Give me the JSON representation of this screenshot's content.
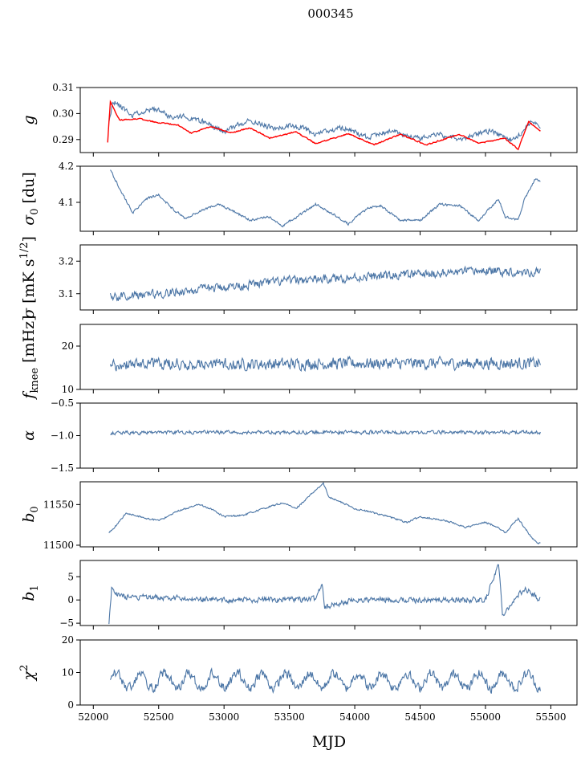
{
  "title": "000345",
  "chart_data": {
    "type": "line",
    "title": "000345",
    "xlabel": "MJD",
    "xlim": [
      51900,
      55700
    ],
    "xticks": [
      52000,
      52500,
      53000,
      53500,
      54000,
      54500,
      55000,
      55500
    ],
    "xtick_labels": [
      "52000",
      "52500",
      "53000",
      "53500",
      "54000",
      "54500",
      "55000",
      "55500"
    ],
    "data_x_range": [
      52120,
      55420
    ],
    "panels": [
      {
        "name": "g",
        "ylabel": "g",
        "ylim": [
          0.285,
          0.31
        ],
        "yticks": [
          0.29,
          0.3,
          0.31
        ],
        "ytick_labels": [
          "0.29",
          "0.30",
          "0.31"
        ],
        "series": [
          {
            "name": "g",
            "color": "#4c76a6",
            "points": [
              [
                52120,
                0.296
              ],
              [
                52150,
                0.305
              ],
              [
                52200,
                0.303
              ],
              [
                52300,
                0.2995
              ],
              [
                52400,
                0.301
              ],
              [
                52500,
                0.3015
              ],
              [
                52600,
                0.2985
              ],
              [
                52700,
                0.299
              ],
              [
                52800,
                0.2975
              ],
              [
                52900,
                0.2955
              ],
              [
                53000,
                0.293
              ],
              [
                53100,
                0.2955
              ],
              [
                53200,
                0.2975
              ],
              [
                53300,
                0.2955
              ],
              [
                53400,
                0.294
              ],
              [
                53500,
                0.2955
              ],
              [
                53600,
                0.2945
              ],
              [
                53700,
                0.292
              ],
              [
                53800,
                0.2935
              ],
              [
                53900,
                0.2945
              ],
              [
                54000,
                0.293
              ],
              [
                54100,
                0.2905
              ],
              [
                54200,
                0.2925
              ],
              [
                54300,
                0.293
              ],
              [
                54400,
                0.2915
              ],
              [
                54500,
                0.2905
              ],
              [
                54600,
                0.292
              ],
              [
                54700,
                0.2915
              ],
              [
                54800,
                0.29
              ],
              [
                54900,
                0.2915
              ],
              [
                55000,
                0.2935
              ],
              [
                55100,
                0.292
              ],
              [
                55200,
                0.29
              ],
              [
                55300,
                0.2935
              ],
              [
                55350,
                0.2975
              ],
              [
                55420,
                0.295
              ]
            ],
            "noise": 0.0009,
            "seed": 11
          },
          {
            "name": "model",
            "color": "#ff0000",
            "points": [
              [
                52110,
                0.289
              ],
              [
                52130,
                0.3045
              ],
              [
                52200,
                0.2975
              ],
              [
                52350,
                0.298
              ],
              [
                52500,
                0.2965
              ],
              [
                52650,
                0.2955
              ],
              [
                52750,
                0.2925
              ],
              [
                52900,
                0.295
              ],
              [
                53050,
                0.2925
              ],
              [
                53200,
                0.2945
              ],
              [
                53350,
                0.2905
              ],
              [
                53550,
                0.293
              ],
              [
                53700,
                0.2885
              ],
              [
                53950,
                0.2922
              ],
              [
                54150,
                0.288
              ],
              [
                54350,
                0.292
              ],
              [
                54550,
                0.288
              ],
              [
                54800,
                0.292
              ],
              [
                54950,
                0.2885
              ],
              [
                55150,
                0.2905
              ],
              [
                55250,
                0.2862
              ],
              [
                55330,
                0.297
              ],
              [
                55420,
                0.293
              ]
            ],
            "noise": 0.0002,
            "seed": 5
          }
        ]
      },
      {
        "name": "sigma0",
        "ylabel": "σ",
        "ylabel_sub": "0",
        "ylabel_unit": "[du]",
        "ylim": [
          4.02,
          4.2
        ],
        "yticks": [
          4.1,
          4.2
        ],
        "ytick_labels": [
          "4.1",
          "4.2"
        ],
        "series": [
          {
            "name": "sigma0",
            "color": "#4c76a6",
            "points": [
              [
                52130,
                4.19
              ],
              [
                52200,
                4.14
              ],
              [
                52300,
                4.07
              ],
              [
                52400,
                4.11
              ],
              [
                52500,
                4.12
              ],
              [
                52600,
                4.085
              ],
              [
                52700,
                4.055
              ],
              [
                52850,
                4.08
              ],
              [
                52950,
                4.095
              ],
              [
                53100,
                4.07
              ],
              [
                53200,
                4.05
              ],
              [
                53350,
                4.06
              ],
              [
                53450,
                4.035
              ],
              [
                53600,
                4.07
              ],
              [
                53700,
                4.095
              ],
              [
                53800,
                4.075
              ],
              [
                53950,
                4.04
              ],
              [
                54100,
                4.085
              ],
              [
                54200,
                4.09
              ],
              [
                54350,
                4.05
              ],
              [
                54500,
                4.05
              ],
              [
                54650,
                4.095
              ],
              [
                54800,
                4.09
              ],
              [
                54950,
                4.05
              ],
              [
                55050,
                4.09
              ],
              [
                55100,
                4.11
              ],
              [
                55150,
                4.06
              ],
              [
                55250,
                4.05
              ],
              [
                55300,
                4.11
              ],
              [
                55380,
                4.165
              ],
              [
                55420,
                4.16
              ]
            ],
            "noise": 0.003,
            "seed": 21
          }
        ]
      },
      {
        "name": "sigma",
        "ylabel": "σ",
        "ylabel_unit": "[mK s",
        "ylabel_sup": "1/2",
        "ylabel_close": "]",
        "ylim": [
          3.05,
          3.25
        ],
        "yticks": [
          3.1,
          3.2
        ],
        "ytick_labels": [
          "3.1",
          "3.2"
        ],
        "series": [
          {
            "name": "sigma",
            "color": "#4c76a6",
            "points": [
              [
                52130,
                3.09
              ],
              [
                52500,
                3.1
              ],
              [
                53000,
                3.12
              ],
              [
                53500,
                3.14
              ],
              [
                54000,
                3.15
              ],
              [
                54500,
                3.16
              ],
              [
                55000,
                3.17
              ],
              [
                55420,
                3.165
              ]
            ],
            "noise": 0.012,
            "seed": 31
          }
        ]
      },
      {
        "name": "fknee",
        "ylabel": "f",
        "ylabel_sub": "knee",
        "ylabel_unit": "[mHz]",
        "ylim": [
          10,
          25
        ],
        "yticks": [
          10,
          20
        ],
        "ytick_labels": [
          "10",
          "20"
        ],
        "series": [
          {
            "name": "fknee",
            "color": "#4c76a6",
            "points": [
              [
                52130,
                15.8
              ],
              [
                53000,
                15.8
              ],
              [
                54000,
                16.0
              ],
              [
                55000,
                16.0
              ],
              [
                55420,
                16.0
              ]
            ],
            "noise": 1.2,
            "seed": 41
          }
        ]
      },
      {
        "name": "alpha",
        "ylabel": "α",
        "ylim": [
          -1.5,
          -0.5
        ],
        "yticks": [
          -1.5,
          -1.0,
          -0.5
        ],
        "ytick_labels": [
          "−1.5",
          "−1.0",
          "−0.5"
        ],
        "series": [
          {
            "name": "alpha",
            "color": "#4c76a6",
            "points": [
              [
                52130,
                -0.96
              ],
              [
                53000,
                -0.95
              ],
              [
                54000,
                -0.95
              ],
              [
                55000,
                -0.95
              ],
              [
                55420,
                -0.95
              ]
            ],
            "noise": 0.025,
            "seed": 51
          }
        ]
      },
      {
        "name": "b0",
        "ylabel": "b",
        "ylabel_sub": "0",
        "ylim": [
          11498,
          11578
        ],
        "yticks": [
          11500,
          11550
        ],
        "ytick_labels": [
          "11500",
          "11550"
        ],
        "series": [
          {
            "name": "b0",
            "color": "#4c76a6",
            "points": [
              [
                52120,
                11515
              ],
              [
                52180,
                11525
              ],
              [
                52250,
                11540
              ],
              [
                52400,
                11533
              ],
              [
                52500,
                11530
              ],
              [
                52650,
                11542
              ],
              [
                52800,
                11550
              ],
              [
                52900,
                11545
              ],
              [
                53000,
                11535
              ],
              [
                53150,
                11537
              ],
              [
                53300,
                11545
              ],
              [
                53450,
                11552
              ],
              [
                53550,
                11545
              ],
              [
                53650,
                11560
              ],
              [
                53760,
                11576
              ],
              [
                53800,
                11560
              ],
              [
                54000,
                11545
              ],
              [
                54200,
                11538
              ],
              [
                54400,
                11528
              ],
              [
                54500,
                11535
              ],
              [
                54700,
                11530
              ],
              [
                54850,
                11522
              ],
              [
                55000,
                11528
              ],
              [
                55050,
                11525
              ],
              [
                55100,
                11522
              ],
              [
                55150,
                11515
              ],
              [
                55250,
                11533
              ],
              [
                55350,
                11510
              ],
              [
                55400,
                11502
              ],
              [
                55420,
                11503
              ]
            ],
            "noise": 1.0,
            "seed": 61
          }
        ]
      },
      {
        "name": "b1",
        "ylabel": "b",
        "ylabel_sub": "1",
        "ylim": [
          -5.5,
          8.5
        ],
        "yticks": [
          -5,
          0,
          5
        ],
        "ytick_labels": [
          "−5",
          "0",
          "5"
        ],
        "series": [
          {
            "name": "b1",
            "color": "#4c76a6",
            "points": [
              [
                52120,
                -4.7
              ],
              [
                52140,
                2.5
              ],
              [
                52200,
                0.8
              ],
              [
                53000,
                0.0
              ],
              [
                53700,
                0.2
              ],
              [
                53750,
                3.8
              ],
              [
                53770,
                -1.5
              ],
              [
                54000,
                0.0
              ],
              [
                55000,
                0.0
              ],
              [
                55100,
                7.8
              ],
              [
                55130,
                -3.0
              ],
              [
                55300,
                2.5
              ],
              [
                55420,
                0.0
              ]
            ],
            "noise": 0.55,
            "seed": 71
          }
        ]
      },
      {
        "name": "chi2",
        "ylabel": "χ",
        "ylabel_sup": "2",
        "ylim": [
          0,
          20
        ],
        "yticks": [
          0,
          10,
          20
        ],
        "ytick_labels": [
          "0",
          "10",
          "20"
        ],
        "series": [
          {
            "name": "chi2",
            "color": "#4c76a6",
            "points": [
              [
                52130,
                7.5
              ],
              [
                55420,
                7.5
              ]
            ],
            "noise": 1.3,
            "seed": 81,
            "oscillation": {
              "amplitude": 2.3,
              "period": 185
            }
          }
        ]
      }
    ]
  }
}
